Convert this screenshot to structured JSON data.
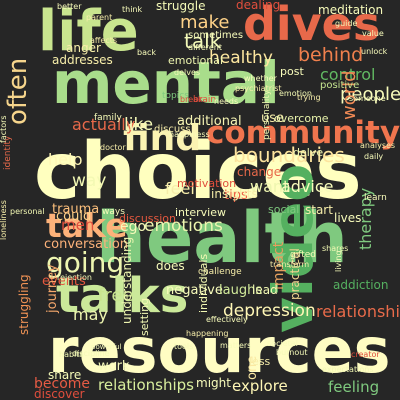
{
  "colors": {
    "background": "#262626"
  },
  "words": [
    {
      "text": "life",
      "color": "#c9e58f"
    },
    {
      "text": "dives",
      "color": "#e8694a"
    },
    {
      "text": "mental",
      "color": "#a9dd8b"
    },
    {
      "text": "often",
      "color": "#f6d58c"
    },
    {
      "text": "choices",
      "color": "#ffffbf"
    },
    {
      "text": "find",
      "color": "#fbf3b2"
    },
    {
      "text": "community",
      "color": "#f0754e"
    },
    {
      "text": "health",
      "color": "#7fc97f"
    },
    {
      "text": "take",
      "color": "#fdb27a"
    },
    {
      "text": "going",
      "color": "#eef6b0"
    },
    {
      "text": "talks",
      "color": "#cbe99a"
    },
    {
      "text": "video",
      "color": "#55b060"
    },
    {
      "text": "resources",
      "color": "#fffdc3"
    },
    {
      "text": "make",
      "color": "#fdd188"
    },
    {
      "text": "talk",
      "color": "#f3f9b8"
    },
    {
      "text": "healthy",
      "color": "#fee7a0"
    },
    {
      "text": "behind",
      "color": "#f0804d"
    },
    {
      "text": "control",
      "color": "#61b962"
    },
    {
      "text": "people",
      "color": "#f8fcbb"
    },
    {
      "text": "world",
      "color": "#f08a55"
    },
    {
      "text": "positive",
      "color": "#c5e48f"
    },
    {
      "text": "addresses",
      "color": "#f7eeaa"
    },
    {
      "text": "emotional",
      "color": "#eef6b0"
    },
    {
      "text": "actually",
      "color": "#e8694a"
    },
    {
      "text": "like",
      "color": "#f5fab8"
    },
    {
      "text": "additional",
      "color": "#f8f6b4"
    },
    {
      "text": "use",
      "color": "#f7eeaa"
    },
    {
      "text": "overcome",
      "color": "#e9f4ac"
    },
    {
      "text": "help",
      "color": "#fff7b6"
    },
    {
      "text": "boundaries",
      "color": "#fde49e"
    },
    {
      "text": "way",
      "color": "#f3f9b4"
    },
    {
      "text": "trauma",
      "color": "#fdc07c"
    },
    {
      "text": "feel",
      "color": "#f7eeaa"
    },
    {
      "text": "want",
      "color": "#eef6b0"
    },
    {
      "text": "advice",
      "color": "#f8fcbb"
    },
    {
      "text": "tips",
      "color": "#ed5e45"
    },
    {
      "text": "could",
      "color": "#fdd188"
    },
    {
      "text": "ego",
      "color": "#f5fab8"
    },
    {
      "text": "emotions",
      "color": "#eef6b0"
    },
    {
      "text": "men",
      "color": "#e04e3d"
    },
    {
      "text": "conversation",
      "color": "#fdb27a"
    },
    {
      "text": "therapy",
      "color": "#7fc97f"
    },
    {
      "text": "impact",
      "color": "#e6a05f"
    },
    {
      "text": "free",
      "color": "#c9e58f"
    },
    {
      "text": "events",
      "color": "#e5583f"
    },
    {
      "text": "negative",
      "color": "#f8fcbb"
    },
    {
      "text": "laughs",
      "color": "#d3ec9b"
    },
    {
      "text": "lead",
      "color": "#f3f9b4"
    },
    {
      "text": "journey",
      "color": "#f6a86c"
    },
    {
      "text": "may",
      "color": "#eef6b0"
    },
    {
      "text": "depression",
      "color": "#fff7b6"
    },
    {
      "text": "relationship",
      "color": "#e96b4a"
    },
    {
      "text": "struggling",
      "color": "#f19355"
    },
    {
      "text": "one",
      "color": "#fbe8a2"
    },
    {
      "text": "work",
      "color": "#f8fcbb"
    },
    {
      "text": "become",
      "color": "#e65b44"
    },
    {
      "text": "relationships",
      "color": "#d8ee9d"
    },
    {
      "text": "explore",
      "color": "#fff7b6"
    },
    {
      "text": "feeling",
      "color": "#7fc97f"
    },
    {
      "text": "less",
      "color": "#f7eeaa"
    },
    {
      "text": "might",
      "color": "#f8fcbb"
    },
    {
      "text": "discover",
      "color": "#e04e3d"
    },
    {
      "text": "share",
      "color": "#f5fab8"
    },
    {
      "text": "setting",
      "color": "#f3f9b4"
    },
    {
      "text": "understanding",
      "color": "#eef6b0"
    },
    {
      "text": "does",
      "color": "#f8fcbb"
    },
    {
      "text": "practical",
      "color": "#f0d58f"
    },
    {
      "text": "addiction",
      "color": "#55b060"
    },
    {
      "text": "interview",
      "color": "#f8fcbb"
    },
    {
      "text": "discussion",
      "color": "#e5583f"
    },
    {
      "text": "social",
      "color": "#7fc97f"
    },
    {
      "text": "start",
      "color": "#f7eeaa"
    },
    {
      "text": "lives",
      "color": "#f8fcbb"
    },
    {
      "text": "individuals",
      "color": "#f3f9b4"
    },
    {
      "text": "delve",
      "color": "#eef6b0"
    },
    {
      "text": "change",
      "color": "#e8694a"
    },
    {
      "text": "insights",
      "color": "#f7eeaa"
    },
    {
      "text": "motivation",
      "color": "#e04e3d"
    },
    {
      "text": "sometimes",
      "color": "#f8fcbb"
    },
    {
      "text": "struggle",
      "color": "#f5fab8"
    },
    {
      "text": "dealing",
      "color": "#e04e3d"
    },
    {
      "text": "meditation",
      "color": "#f8fcbb"
    },
    {
      "text": "anger",
      "color": "#f7eeaa"
    },
    {
      "text": "post",
      "color": "#f8fcbb"
    },
    {
      "text": "family",
      "color": "#f5fab8"
    },
    {
      "text": "brain",
      "color": "#e04e3d"
    },
    {
      "text": "discuss",
      "color": "#f7eeaa"
    },
    {
      "text": "personality",
      "color": "#eef6b0"
    },
    {
      "text": "identity",
      "color": "#e8694a"
    },
    {
      "text": "happiness",
      "color": "#f8fcbb"
    },
    {
      "text": "personal",
      "color": "#f3f9b4"
    },
    {
      "text": "doctor",
      "color": "#f7eeaa"
    },
    {
      "text": "ways",
      "color": "#f8fcbb"
    },
    {
      "text": "rejection",
      "color": "#f5fab8"
    },
    {
      "text": "challenge",
      "color": "#f7eeaa"
    },
    {
      "text": "gifted",
      "color": "#f3f9b4"
    },
    {
      "text": "living",
      "color": "#f8fcbb"
    },
    {
      "text": "shares",
      "color": "#f3f9b4"
    },
    {
      "text": "transform",
      "color": "#f7eeaa"
    },
    {
      "text": "learn",
      "color": "#f8fcbb"
    },
    {
      "text": "burnout",
      "color": "#f5fab8"
    },
    {
      "text": "societal",
      "color": "#f8fcbb"
    },
    {
      "text": "creator",
      "color": "#e04e3d"
    },
    {
      "text": "expectations",
      "color": "#f3f9b4"
    },
    {
      "text": "effectively",
      "color": "#f8fcbb"
    },
    {
      "text": "discipline",
      "color": "#f5fab8"
    },
    {
      "text": "happening",
      "color": "#f7eeaa"
    },
    {
      "text": "habits",
      "color": "#f3f9b4"
    },
    {
      "text": "powerful",
      "color": "#f8fcbb"
    },
    {
      "text": "tools",
      "color": "#f5fab8"
    },
    {
      "text": "matters",
      "color": "#f8fcbb"
    },
    {
      "text": "better",
      "color": "#f8fcbb"
    },
    {
      "text": "parent",
      "color": "#f7eeaa"
    },
    {
      "text": "think",
      "color": "#f8fcbb"
    },
    {
      "text": "topics",
      "color": "#7fc97f"
    },
    {
      "text": "factors",
      "color": "#f5fab8"
    },
    {
      "text": "daily",
      "color": "#f8fcbb"
    },
    {
      "text": "analyses",
      "color": "#f7eeaa"
    },
    {
      "text": "unlock",
      "color": "#f8fcbb"
    },
    {
      "text": "someone",
      "color": "#f5fab8"
    },
    {
      "text": "emotion",
      "color": "#f3f9b4"
    },
    {
      "text": "psychiatrist",
      "color": "#f7eeaa"
    },
    {
      "text": "different",
      "color": "#f8fcbb"
    },
    {
      "text": "affects",
      "color": "#f7eeaa"
    },
    {
      "text": "value",
      "color": "#f8fcbb"
    },
    {
      "text": "guide",
      "color": "#f5fab8"
    },
    {
      "text": "loneliness",
      "color": "#f7eeaa"
    },
    {
      "text": "back",
      "color": "#f8fcbb"
    },
    {
      "text": "delves",
      "color": "#f3f9b4"
    },
    {
      "text": "whether",
      "color": "#f8fcbb"
    },
    {
      "text": "trying",
      "color": "#f7eeaa"
    },
    {
      "text": "break",
      "color": "#e04e3d"
    },
    {
      "text": "needs",
      "color": "#f8fcbb"
    }
  ]
}
